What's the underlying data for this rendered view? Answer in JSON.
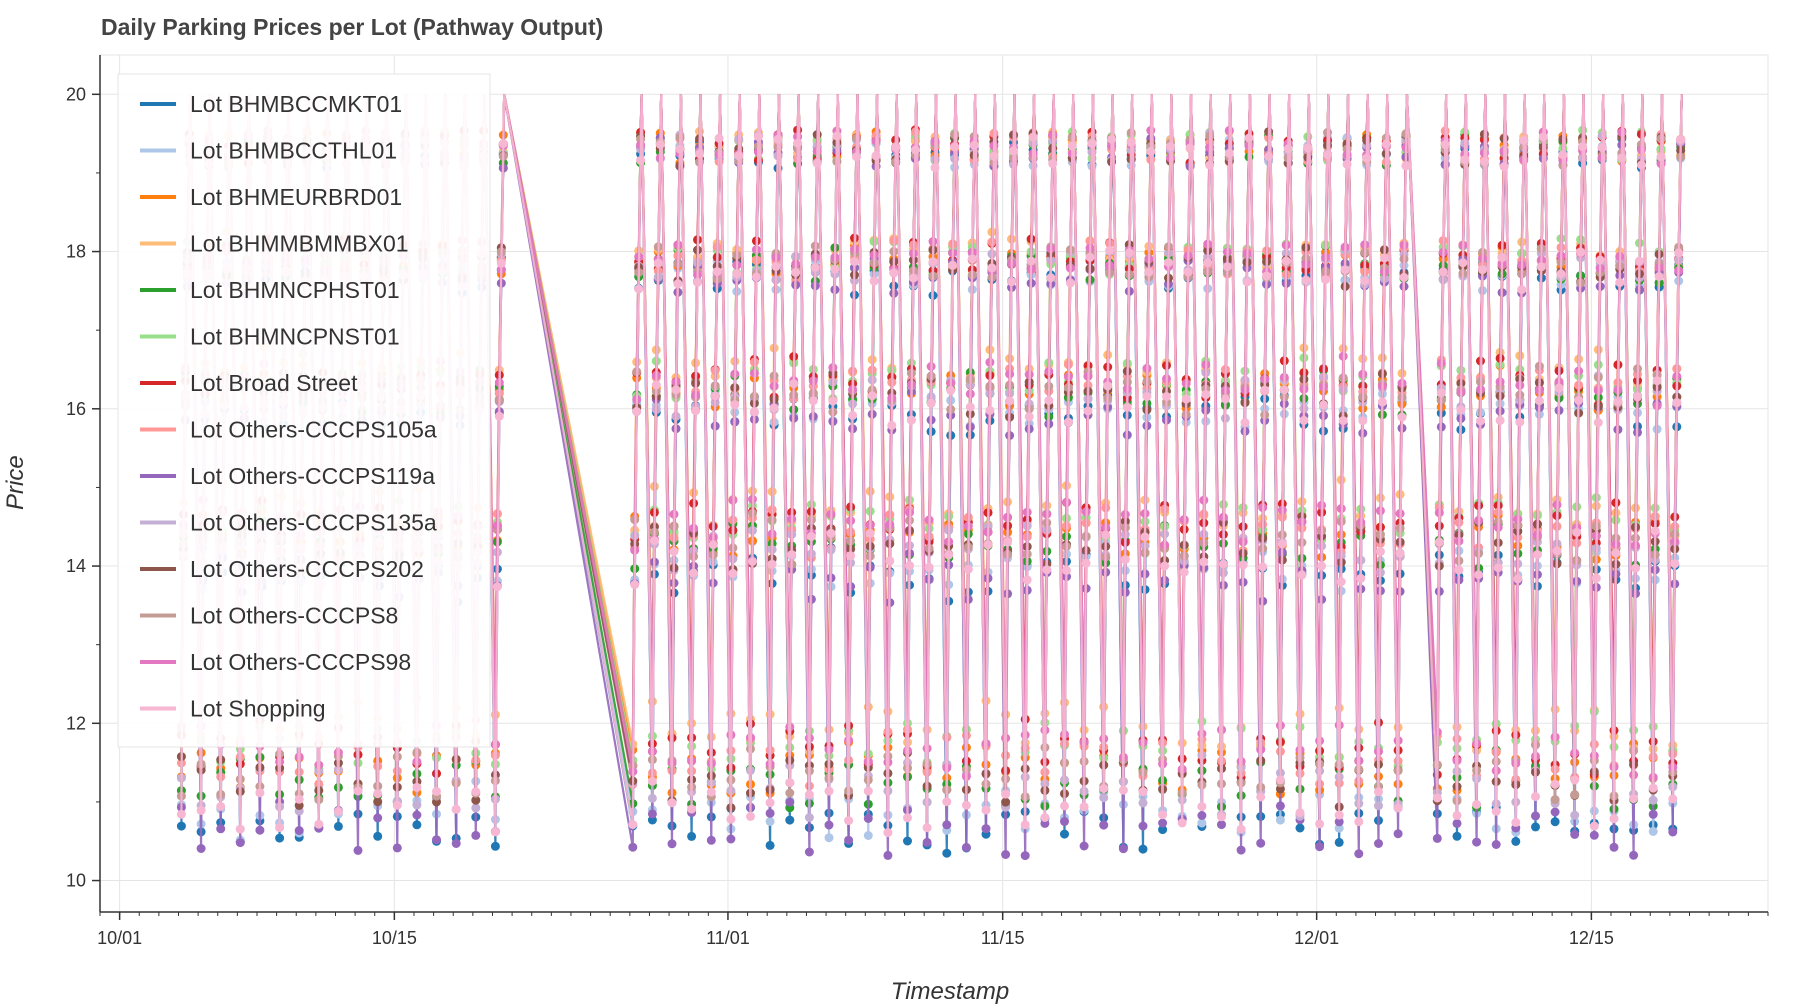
{
  "chart_data": {
    "type": "line",
    "title": "Daily Parking Prices per Lot (Pathway Output)",
    "xlabel": "Timestamp",
    "ylabel": "Price",
    "x_range": [
      "2016-09-30",
      "2016-12-24"
    ],
    "ylim": [
      9.6,
      20.5
    ],
    "x_ticks": [
      "10/01",
      "10/15",
      "11/01",
      "11/15",
      "12/01",
      "12/15"
    ],
    "y_ticks": [
      10,
      12,
      14,
      16,
      18,
      20
    ],
    "grid": true,
    "legend_position": "top-left",
    "data_gaps": [
      [
        "2016-10-20",
        "2016-10-27"
      ],
      [
        "2016-12-05",
        "2016-12-07"
      ]
    ],
    "series": [
      {
        "name": "Lot BHMBCCMKT01",
        "color": "#1f77b4",
        "daily_min": 10.3,
        "daily_max": 20.0
      },
      {
        "name": "Lot BHMBCCTHL01",
        "color": "#aec7e8",
        "daily_min": 10.5,
        "daily_max": 20.0
      },
      {
        "name": "Lot BHMEURBRD01",
        "color": "#ff7f0e",
        "daily_min": 11.1,
        "daily_max": 20.0
      },
      {
        "name": "Lot BHMMBMMBX01",
        "color": "#ffbb78",
        "daily_min": 11.6,
        "daily_max": 20.0
      },
      {
        "name": "Lot BHMNCPHST01",
        "color": "#2ca02c",
        "daily_min": 10.9,
        "daily_max": 20.0
      },
      {
        "name": "Lot BHMNCPNST01",
        "color": "#98df8a",
        "daily_min": 11.4,
        "daily_max": 20.0
      },
      {
        "name": "Lot Broad Street",
        "color": "#d62728",
        "daily_min": 11.3,
        "daily_max": 20.0
      },
      {
        "name": "Lot Others-CCCPS105a",
        "color": "#ff9896",
        "daily_min": 11.2,
        "daily_max": 20.0
      },
      {
        "name": "Lot Others-CCCPS119a",
        "color": "#9467bd",
        "daily_min": 10.3,
        "daily_max": 20.0
      },
      {
        "name": "Lot Others-CCCPS135a",
        "color": "#c5b0d5",
        "daily_min": 10.8,
        "daily_max": 20.0
      },
      {
        "name": "Lot Others-CCCPS202",
        "color": "#8c564b",
        "daily_min": 10.9,
        "daily_max": 20.0
      },
      {
        "name": "Lot Others-CCCPS8",
        "color": "#c49c94",
        "daily_min": 11.0,
        "daily_max": 20.0
      },
      {
        "name": "Lot Others-CCCPS98",
        "color": "#e377c2",
        "daily_min": 11.3,
        "daily_max": 20.0
      },
      {
        "name": "Lot Shopping",
        "color": "#f7b6d2",
        "daily_min": 10.6,
        "daily_max": 20.0
      }
    ]
  }
}
